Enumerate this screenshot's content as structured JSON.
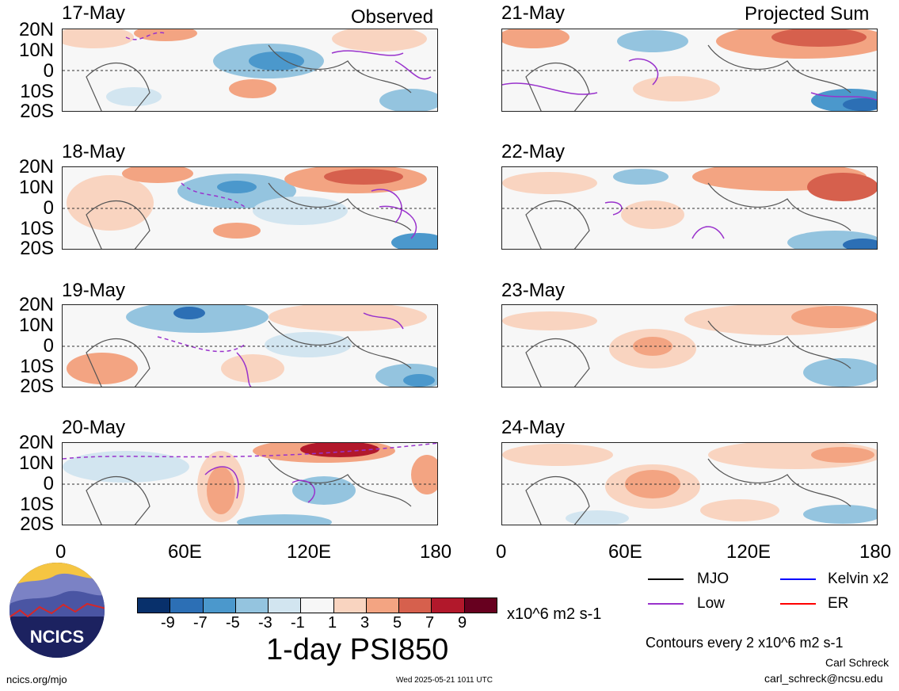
{
  "columns": {
    "left_title": "Observed",
    "right_title": "Projected Sum"
  },
  "lat_labels": [
    "20N",
    "10N",
    "0",
    "10S",
    "20S"
  ],
  "lon_labels": [
    "0",
    "60E",
    "120E",
    "180"
  ],
  "panels_left": [
    {
      "date": "17-May"
    },
    {
      "date": "18-May"
    },
    {
      "date": "19-May"
    },
    {
      "date": "20-May"
    }
  ],
  "panels_right": [
    {
      "date": "21-May"
    },
    {
      "date": "22-May"
    },
    {
      "date": "23-May"
    },
    {
      "date": "24-May"
    }
  ],
  "colorbar": {
    "colors": [
      "#08306b",
      "#2c6fb5",
      "#4b98cc",
      "#94c4df",
      "#d2e5f0",
      "#f7f7f7",
      "#f9d4c0",
      "#f3a482",
      "#d6604d",
      "#b2182b",
      "#67001f"
    ],
    "ticks": [
      "-9",
      "-7",
      "-5",
      "-3",
      "-1",
      "1",
      "3",
      "5",
      "7",
      "9"
    ],
    "units": "x10^6 m2 s-1",
    "title": "1-day PSI850"
  },
  "legend": {
    "mjo": {
      "label": "MJO",
      "color": "#000000"
    },
    "low": {
      "label": "Low",
      "color": "#9932cc"
    },
    "kelvin": {
      "label": "Kelvin x2",
      "color": "#0000ff"
    },
    "er": {
      "label": "ER",
      "color": "#ff0000"
    }
  },
  "contours_note": "Contours every 2 x10^6 m2 s-1",
  "author": "Carl Schreck",
  "email": "carl_schreck@ncsu.edu",
  "website": "ncics.org/mjo",
  "timestamp": "Wed 2025-05-21 1011 UTC",
  "logo_text": "NCICS"
}
